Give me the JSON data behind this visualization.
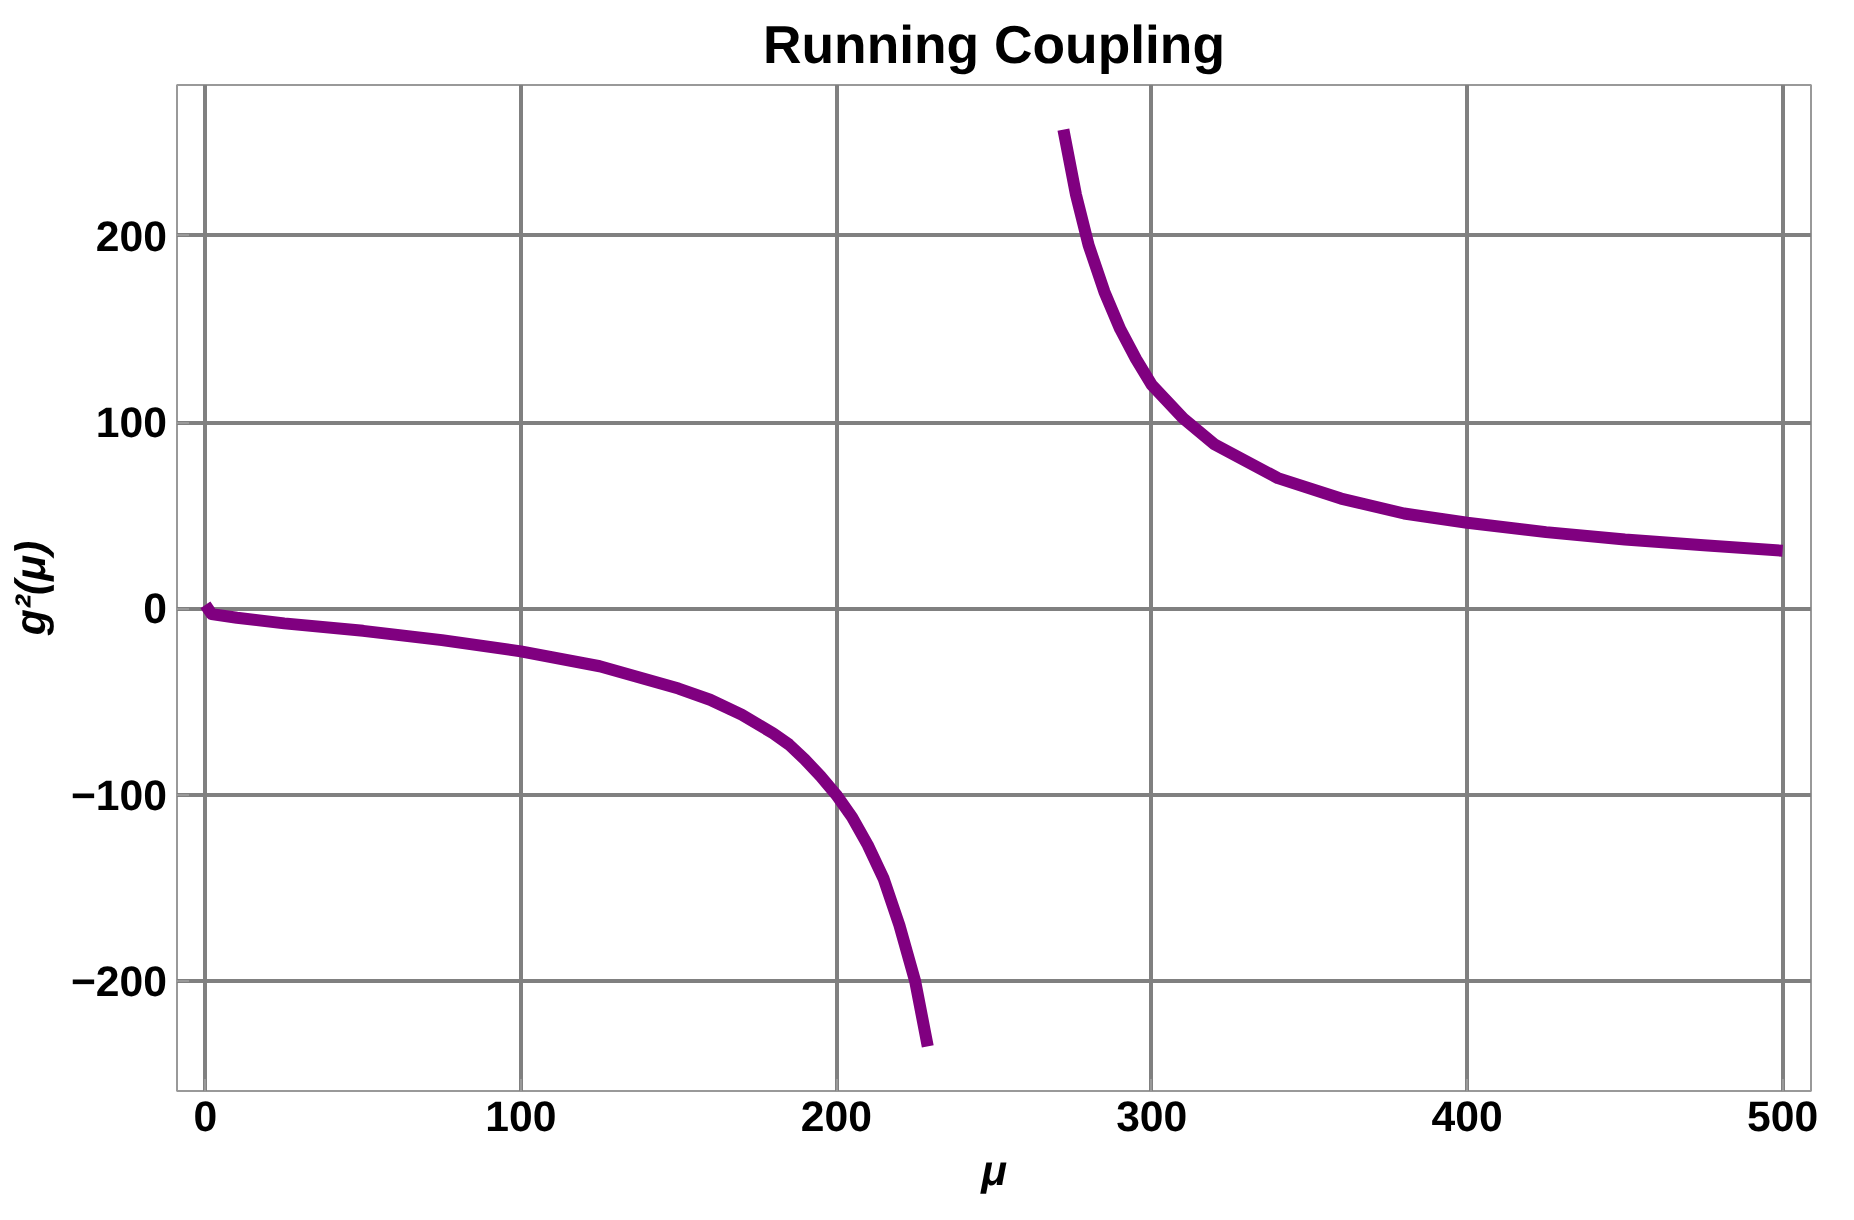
{
  "chart_data": {
    "type": "line",
    "title": "Running Coupling",
    "xlabel": "μ",
    "ylabel": "g²(μ)",
    "xlim": [
      -9,
      509
    ],
    "ylim": [
      -259,
      281
    ],
    "xticks": [
      0,
      100,
      200,
      300,
      400,
      500
    ],
    "yticks": [
      -200,
      -100,
      0,
      100,
      200
    ],
    "grid": true,
    "marker": "none",
    "line_style": "solid",
    "series": [
      {
        "color": "#800080",
        "x": [
          0,
          2,
          10,
          25,
          50,
          75,
          100,
          125,
          150,
          160,
          170,
          180,
          185,
          190,
          195,
          200,
          205,
          210,
          215,
          220,
          225,
          229,
          250,
          272,
          276,
          280,
          285,
          290,
          295,
          300,
          310,
          320,
          340,
          360,
          380,
          400,
          425,
          450,
          475,
          500
        ],
        "values": [
          2,
          -3,
          -5,
          -8,
          -12,
          -17,
          -23,
          -31,
          -43,
          -49,
          -57,
          -67,
          -73,
          -81,
          -90,
          -100,
          -112,
          -127,
          -145,
          -170,
          -200,
          -235,
          null,
          257,
          222,
          195,
          170,
          150,
          134,
          120,
          102,
          88,
          70,
          59,
          51,
          46,
          41,
          37,
          34,
          31
        ]
      }
    ]
  }
}
